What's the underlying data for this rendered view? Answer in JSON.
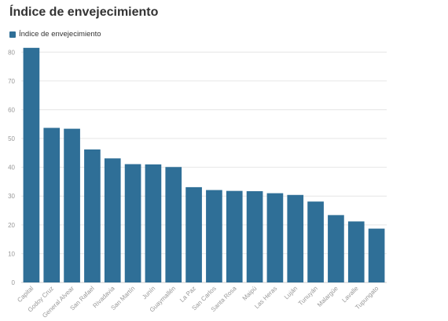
{
  "chart_data": {
    "type": "bar",
    "title": "Índice de envejecimiento",
    "legend_position": "top-left",
    "grid": true,
    "series": [
      {
        "name": "Índice de envejecimiento",
        "color": "#2f6f97",
        "values": [
          81.5,
          53.7,
          53.4,
          46.2,
          43.1,
          41.1,
          41.0,
          40.1,
          33.1,
          32.1,
          31.8,
          31.7,
          31.0,
          30.4,
          28.1,
          23.4,
          21.2,
          18.7
        ]
      }
    ],
    "categories": [
      "Capital",
      "Godoy Cruz",
      "General Alvear",
      "San Rafael",
      "Rivadavia",
      "San Martín",
      "Junín",
      "Guaymallén",
      "La Paz",
      "San Carlos",
      "Santa Rosa",
      "Maipú",
      "Las Heras",
      "Luján",
      "Tunuyán",
      "Malargüe",
      "Lavalle",
      "Tupungato"
    ],
    "ylim": [
      0,
      85
    ],
    "yticks": [
      "0",
      "10",
      "20",
      "30",
      "40",
      "50",
      "60",
      "70",
      "80"
    ]
  }
}
